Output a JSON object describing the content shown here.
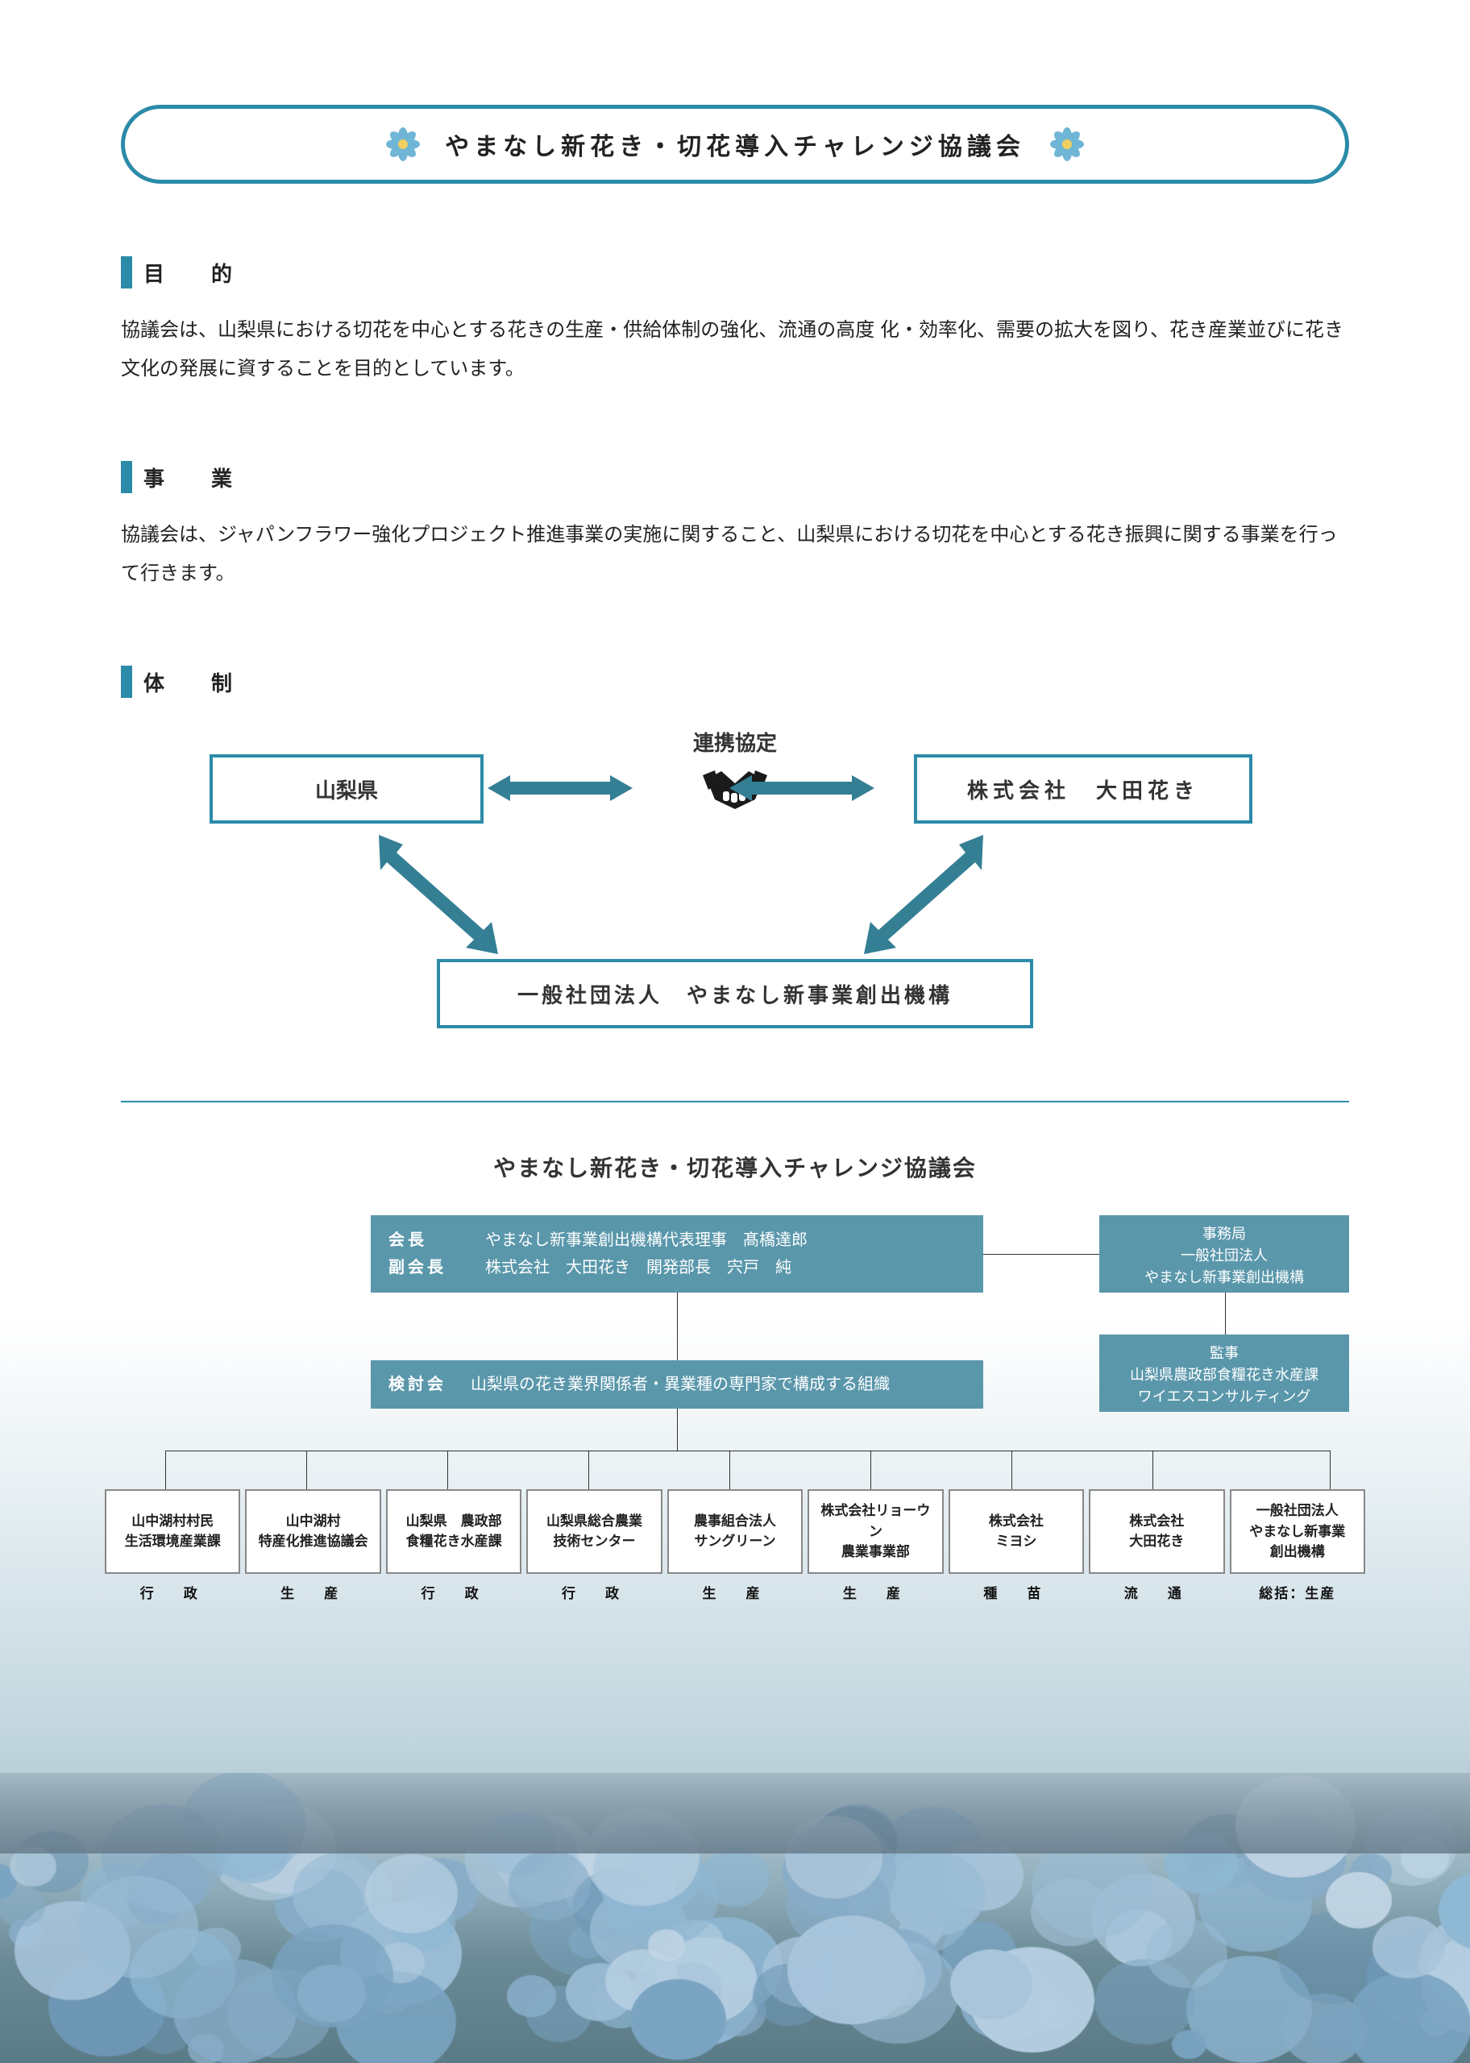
{
  "colors": {
    "accent": "#2b8ba8",
    "org_box": "#5a97ab",
    "flower_petal": "#6fb5d6",
    "flower_center": "#f0d060"
  },
  "title": "やまなし新花き・切花導入チャレンジ協議会",
  "sections": {
    "purpose": {
      "heading": "目　的",
      "text": "協議会は、山梨県における切花を中心とする花きの生産・供給体制の強化、流通の高度 化・効率化、需要の拡大を図り、花き産業並びに花き文化の発展に資することを目的としています。"
    },
    "business": {
      "heading": "事　業",
      "text": "協議会は、ジャパンフラワー強化プロジェクト推進事業の実施に関すること、山梨県における切花を中心とする花き振興に関する事業を行って行きます。"
    },
    "structure": {
      "heading": "体　制"
    }
  },
  "partnership": {
    "left": "山梨県",
    "right": "株式会社　大田花き",
    "bottom": "一般社団法人　やまなし新事業創出機構",
    "center_label": "連携協定",
    "arrow_color": "#357f95"
  },
  "org_chart": {
    "title": "やまなし新花き・切花導入チャレンジ協議会",
    "leaders": [
      {
        "role": "会長",
        "name": "やまなし新事業創出機構代表理事　髙橋達郎"
      },
      {
        "role": "副会長",
        "name": "株式会社　大田花き　開発部長　宍戸　純"
      }
    ],
    "secretariat": {
      "title": "事務局",
      "line1": "一般社団法人",
      "line2": "やまなし新事業創出機構"
    },
    "study_group": {
      "role": "検討会",
      "desc": "山梨県の花き業界関係者・異業種の専門家で構成する組織"
    },
    "audit": {
      "title": "監事",
      "line1": "山梨県農政部食糧花き水産課",
      "line2": "ワイエスコンサルティング"
    },
    "members": [
      {
        "name_l1": "山中湖村村民",
        "name_l2": "生活環境産業課",
        "category": "行　政"
      },
      {
        "name_l1": "山中湖村",
        "name_l2": "特産化推進協議会",
        "category": "生　産"
      },
      {
        "name_l1": "山梨県　農政部",
        "name_l2": "食糧花き水産課",
        "category": "行　政"
      },
      {
        "name_l1": "山梨県総合農業",
        "name_l2": "技術センター",
        "category": "行　政"
      },
      {
        "name_l1": "農事組合法人",
        "name_l2": "サングリーン",
        "category": "生　産"
      },
      {
        "name_l1": "株式会社リョーウン",
        "name_l2": "農業事業部",
        "category": "生　産"
      },
      {
        "name_l1": "株式会社",
        "name_l2": "ミヨシ",
        "category": "種　苗"
      },
      {
        "name_l1": "株式会社",
        "name_l2": "大田花き",
        "category": "流　通"
      },
      {
        "name_l1": "一般社団法人",
        "name_l2": "やまなし新事業",
        "name_l3": "創出機構",
        "category": "総括：生産"
      }
    ]
  }
}
